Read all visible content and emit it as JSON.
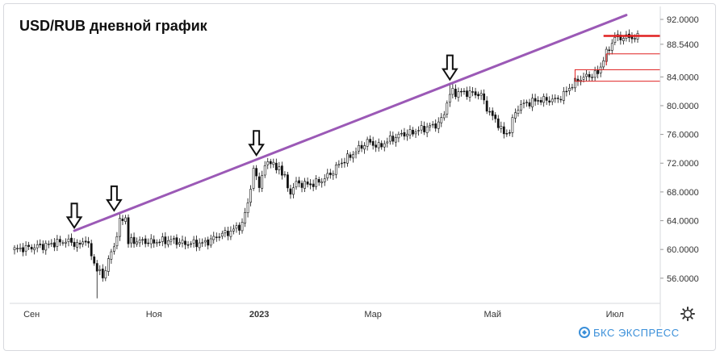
{
  "chart_data": {
    "type": "candlestick",
    "title": "USD/RUB дневной график",
    "y_ticks": [
      "92.0000",
      "88.5400",
      "84.0000",
      "80.0000",
      "76.0000",
      "72.0000",
      "68.0000",
      "64.0000",
      "60.0000",
      "56.0000"
    ],
    "y_tick_values": [
      92.0,
      88.54,
      84.0,
      80.0,
      76.0,
      72.0,
      68.0,
      64.0,
      60.0,
      56.0
    ],
    "ylim": [
      52.5,
      93.8
    ],
    "x_ticks": [
      {
        "label": "Сен",
        "index": 6,
        "bold": false
      },
      {
        "label": "Ноя",
        "index": 49,
        "bold": false
      },
      {
        "label": "2023",
        "index": 86,
        "bold": true
      },
      {
        "label": "Мар",
        "index": 126,
        "bold": false
      },
      {
        "label": "Май",
        "index": 168,
        "bold": false
      },
      {
        "label": "Июл",
        "index": 211,
        "bold": false
      }
    ],
    "n_days": 220,
    "anchors": [
      [
        0,
        60.0
      ],
      [
        10,
        60.5
      ],
      [
        18,
        61.2
      ],
      [
        23,
        60.6
      ],
      [
        25,
        61.5
      ],
      [
        27,
        59.2
      ],
      [
        29,
        57.2
      ],
      [
        31,
        56.2
      ],
      [
        33,
        58.5
      ],
      [
        35,
        60.5
      ],
      [
        37,
        63.8
      ],
      [
        39,
        64.5
      ],
      [
        40,
        61.0
      ],
      [
        43,
        61.2
      ],
      [
        48,
        61.0
      ],
      [
        55,
        61.3
      ],
      [
        60,
        60.8
      ],
      [
        67,
        60.9
      ],
      [
        72,
        62.0
      ],
      [
        76,
        62.5
      ],
      [
        80,
        63.5
      ],
      [
        82,
        66.5
      ],
      [
        84,
        71.0
      ],
      [
        85,
        70.0
      ],
      [
        86,
        69.0
      ],
      [
        88,
        71.5
      ],
      [
        90,
        72.5
      ],
      [
        92,
        71.0
      ],
      [
        93,
        71.5
      ],
      [
        95,
        70.0
      ],
      [
        96,
        68.5
      ],
      [
        97,
        68.0
      ],
      [
        99,
        69.2
      ],
      [
        104,
        69.0
      ],
      [
        108,
        69.6
      ],
      [
        111,
        70.5
      ],
      [
        114,
        71.8
      ],
      [
        118,
        73.0
      ],
      [
        121,
        74.0
      ],
      [
        124,
        75.0
      ],
      [
        128,
        74.3
      ],
      [
        132,
        75.3
      ],
      [
        136,
        76.0
      ],
      [
        139,
        76.2
      ],
      [
        142,
        76.6
      ],
      [
        145,
        77.0
      ],
      [
        148,
        77.3
      ],
      [
        150,
        78.0
      ],
      [
        151,
        79.0
      ],
      [
        152,
        80.5
      ],
      [
        153,
        81.5
      ],
      [
        154,
        82.0
      ],
      [
        155,
        81.8
      ],
      [
        160,
        81.8
      ],
      [
        164,
        81.5
      ],
      [
        165,
        80.5
      ],
      [
        167,
        79.0
      ],
      [
        170,
        77.5
      ],
      [
        172,
        76.0
      ],
      [
        174,
        76.5
      ],
      [
        175,
        78.0
      ],
      [
        177,
        79.8
      ],
      [
        180,
        80.4
      ],
      [
        185,
        80.8
      ],
      [
        190,
        80.8
      ],
      [
        193,
        81.5
      ],
      [
        195,
        82.5
      ],
      [
        198,
        83.6
      ],
      [
        202,
        84.2
      ],
      [
        205,
        84.5
      ],
      [
        207,
        86.5
      ],
      [
        209,
        88.0
      ],
      [
        211,
        89.5
      ]
    ],
    "spikes": [
      {
        "index": 29,
        "low": 53.2
      },
      {
        "index": 153,
        "high": 83.2
      },
      {
        "index": 211,
        "high": 90.2
      }
    ],
    "trendline": {
      "from": {
        "index": 21,
        "value": 62.6
      },
      "to": {
        "index": 215,
        "value": 92.6
      },
      "color": "#9b59b6"
    },
    "arrows": [
      {
        "index": 21,
        "value": 62.8
      },
      {
        "index": 35,
        "value": 65.2
      },
      {
        "index": 85,
        "value": 72.9
      },
      {
        "index": 153,
        "value": 83.4
      }
    ],
    "levels": [
      {
        "kind": "line",
        "from_index": 207,
        "value": 89.7,
        "color": "#e02020"
      },
      {
        "kind": "box",
        "from_index": 208,
        "low": 87.2,
        "high": 87.2,
        "color": "#e02020"
      },
      {
        "kind": "box",
        "from_index": 197,
        "low": 83.4,
        "high": 85.0,
        "color": "#e02020"
      }
    ],
    "grid": false,
    "legend": "none"
  },
  "toolbar": {
    "settings_icon": "gear-icon"
  },
  "brand": {
    "name": "БКС ЭКСПРЕСС",
    "color": "#3a8fd9"
  }
}
